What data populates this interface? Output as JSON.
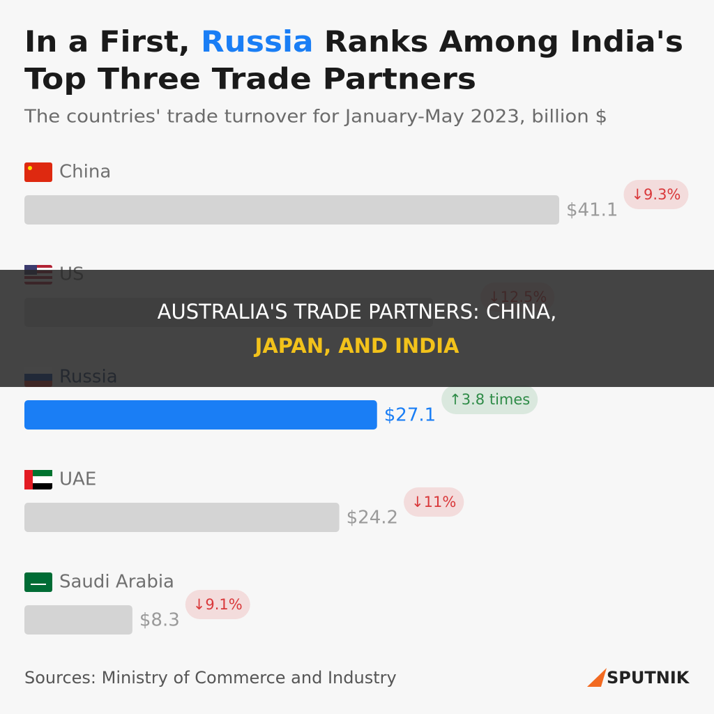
{
  "chart_data": {
    "type": "bar",
    "orientation": "horizontal",
    "title": [
      "In a First, ",
      "Russia",
      " Ranks Among India's",
      "Top Three Trade Partners"
    ],
    "subtitle": "The countries' trade turnover for January-May 2023, billion $",
    "categories": [
      "China",
      "US",
      "Russia",
      "UAE",
      "Saudi Arabia"
    ],
    "values": [
      41.1,
      31.4,
      27.1,
      24.2,
      8.3
    ],
    "value_labels": [
      "$41.1",
      null,
      "$27.1",
      "$24.2",
      "$8.3"
    ],
    "colors": [
      "#d4d4d4",
      "#d4d4d4",
      "#1a7ef5",
      "#d4d4d4",
      "#d4d4d4"
    ],
    "label_colors": [
      "#9a9a9a",
      "#9a9a9a",
      "#1a7ef5",
      "#9a9a9a",
      "#9a9a9a"
    ],
    "xlim": [
      0,
      41.1
    ],
    "annotations": [
      "↓9.3%",
      "↓12.5%",
      "↑3.8 times",
      "↓11%",
      "↓9.1%"
    ],
    "annotation_colors": [
      "#d9383a",
      "#d9383a",
      "#2e8b47",
      "#d9383a",
      "#d9383a"
    ],
    "source": "Sources: Ministry of Commerce and Industry",
    "logo": "SPUTNIK"
  },
  "overlay": {
    "lines": [
      "AUSTRALIA'S TRADE PARTNERS: CHINA,",
      "JAPAN, AND INDIA"
    ]
  }
}
